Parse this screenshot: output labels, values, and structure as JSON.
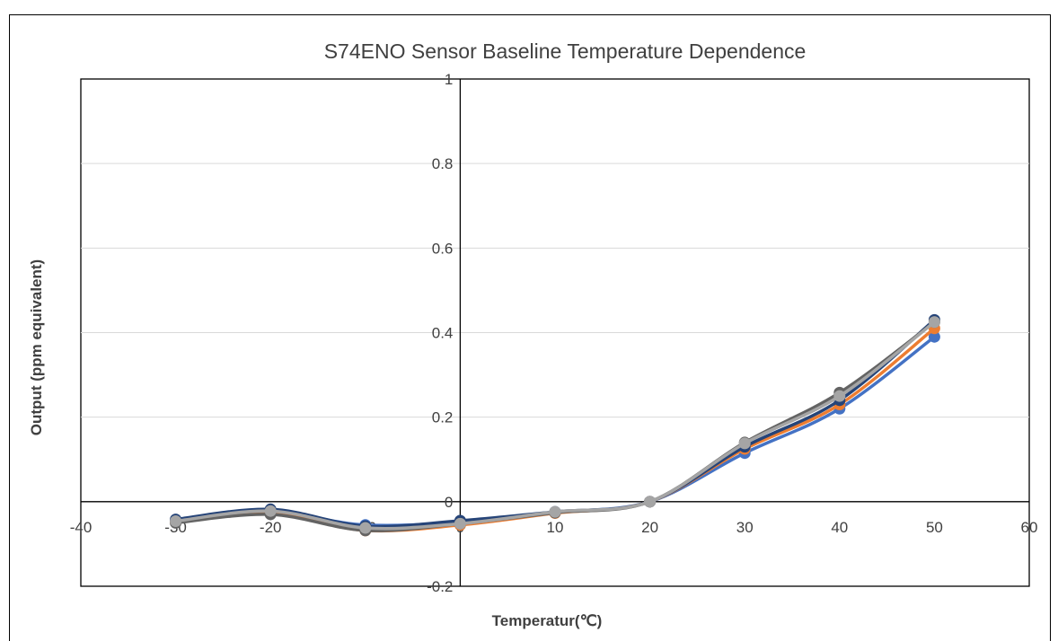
{
  "chart_data": {
    "type": "line",
    "title": "S74ENO Sensor Baseline Temperature Dependence",
    "xlabel": "Temperatur(℃)",
    "ylabel": "Output (ppm equivalent)",
    "xlim": [
      -40,
      60
    ],
    "ylim": [
      -0.2,
      1
    ],
    "x_ticks": [
      -40,
      -30,
      -20,
      -10,
      0,
      10,
      20,
      30,
      40,
      50,
      60
    ],
    "y_ticks": [
      -0.2,
      0,
      0.2,
      0.4,
      0.6,
      0.8,
      1
    ],
    "x_tick_labels": [
      "-40",
      "-30",
      "-20",
      "-10",
      "0",
      "10",
      "20",
      "30",
      "40",
      "50",
      "60"
    ],
    "y_tick_labels": [
      "-0.2",
      "0",
      "0.2",
      "0.4",
      "0.6",
      "0.8",
      "1"
    ],
    "grid": "horizontal",
    "x": [
      -30,
      -20,
      -10,
      0,
      10,
      20,
      30,
      40,
      50
    ],
    "series": [
      {
        "color": "#4472c4",
        "values": [
          -0.045,
          -0.025,
          -0.055,
          -0.048,
          -0.025,
          0,
          0.115,
          0.22,
          0.39
        ]
      },
      {
        "color": "#ed7d31",
        "values": [
          -0.048,
          -0.028,
          -0.068,
          -0.055,
          -0.027,
          0,
          0.125,
          0.23,
          0.41
        ]
      },
      {
        "color": "#264478",
        "values": [
          -0.042,
          -0.018,
          -0.058,
          -0.045,
          -0.024,
          0,
          0.13,
          0.24,
          0.43
        ]
      },
      {
        "color": "#636363",
        "values": [
          -0.05,
          -0.03,
          -0.068,
          -0.052,
          -0.026,
          0,
          0.14,
          0.258,
          0.425
        ]
      },
      {
        "color": "#a5a5a5",
        "values": [
          -0.046,
          -0.022,
          -0.062,
          -0.052,
          -0.024,
          0,
          0.138,
          0.25,
          0.425
        ]
      }
    ]
  }
}
